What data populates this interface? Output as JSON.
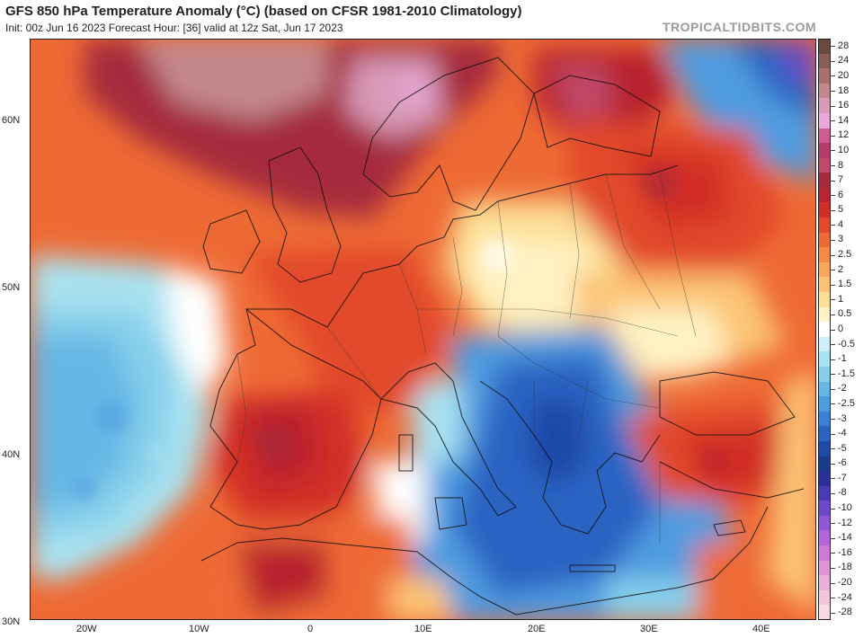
{
  "header": {
    "title": "GFS 850 hPa Temperature Anomaly (°C) (based on CFSR 1981-2010 Climatology)",
    "subtitle": "Init: 00z Jun 16 2023   Forecast Hour: [36]   valid at 12z Sat, Jun 17 2023",
    "watermark": "TROPICALTIDBITS.COM"
  },
  "axes": {
    "lat_labels": [
      "60N",
      "50N",
      "40N",
      "30N"
    ],
    "lon_labels": [
      "20W",
      "10W",
      "0",
      "10E",
      "20E",
      "30E",
      "40E"
    ]
  },
  "colorbar": {
    "levels": [
      {
        "label": "28",
        "color": "#6a4a3e"
      },
      {
        "label": "24",
        "color": "#8a5e58"
      },
      {
        "label": "20",
        "color": "#a8716e"
      },
      {
        "label": "18",
        "color": "#c2888e"
      },
      {
        "label": "16",
        "color": "#d89ab8"
      },
      {
        "label": "14",
        "color": "#e9a8da"
      },
      {
        "label": "12",
        "color": "#d05b8f"
      },
      {
        "label": "10",
        "color": "#b43a6a"
      },
      {
        "label": "8",
        "color": "#c04a68"
      },
      {
        "label": "7",
        "color": "#a52a3e"
      },
      {
        "label": "6",
        "color": "#b8242f"
      },
      {
        "label": "5",
        "color": "#d22e28"
      },
      {
        "label": "4",
        "color": "#e2482a"
      },
      {
        "label": "3",
        "color": "#ee6a34"
      },
      {
        "label": "2.5",
        "color": "#f58a44"
      },
      {
        "label": "2",
        "color": "#f9a75a"
      },
      {
        "label": "1.5",
        "color": "#fcc474"
      },
      {
        "label": "1",
        "color": "#fde096"
      },
      {
        "label": "0.5",
        "color": "#fff2c4"
      },
      {
        "label": "0",
        "color": "#ffffff"
      },
      {
        "label": "-0.5",
        "color": "#cfeff6"
      },
      {
        "label": "-1",
        "color": "#a9e2f0"
      },
      {
        "label": "-1.5",
        "color": "#86cfea"
      },
      {
        "label": "-2",
        "color": "#66b7e6"
      },
      {
        "label": "-2.5",
        "color": "#4f9be0"
      },
      {
        "label": "-3",
        "color": "#3b7fd6"
      },
      {
        "label": "-4",
        "color": "#2b63c2"
      },
      {
        "label": "-5",
        "color": "#1f4aa8"
      },
      {
        "label": "-6",
        "color": "#1a3a8e"
      },
      {
        "label": "-7",
        "color": "#2a2f9a"
      },
      {
        "label": "-8",
        "color": "#4a3bb4"
      },
      {
        "label": "-10",
        "color": "#6d48c8"
      },
      {
        "label": "-12",
        "color": "#9257d6"
      },
      {
        "label": "-14",
        "color": "#b366d8"
      },
      {
        "label": "-16",
        "color": "#cf7ad8"
      },
      {
        "label": "-18",
        "color": "#df94d6"
      },
      {
        "label": "-20",
        "color": "#eab0d8"
      },
      {
        "label": "-24",
        "color": "#f2c6da"
      },
      {
        "label": "-28",
        "color": "#f8dbe4"
      }
    ]
  }
}
